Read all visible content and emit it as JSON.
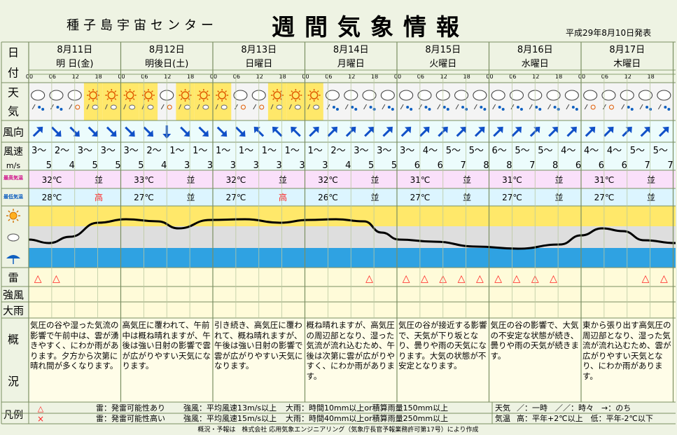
{
  "header": {
    "org": "種子島宇宙センター",
    "title": "週間気象情報",
    "issued": "平成29年8月10日発表"
  },
  "row_labels": {
    "date": "日付",
    "weather": "天気",
    "wind_dir": "風向",
    "wind_speed": "風速",
    "wind_unit": "m/s",
    "max_temp": "最高気温",
    "min_temp": "最低気温",
    "lightning": "雷",
    "strong_wind": "強風",
    "heavy_rain": "大雨",
    "overview": "概況",
    "legend": "凡例"
  },
  "hours": [
    "00",
    "06",
    "12",
    "18"
  ],
  "days": [
    {
      "date": "8月11日",
      "weekday": "明 日(金)",
      "max": "32℃",
      "max_eval": "並",
      "min": "28℃",
      "min_eval": "高",
      "weather": [
        "cloud-rain",
        "cloud-rain",
        "cloud-sun",
        "sun",
        "sun"
      ],
      "wind_dir": [
        [
          45,
          "NE"
        ],
        [
          135,
          "SE"
        ],
        [
          135,
          "SE"
        ],
        [
          135,
          "SE"
        ],
        [
          135,
          "SE"
        ]
      ],
      "wind_speed": [
        [
          "3",
          "5"
        ],
        [
          "2",
          "4"
        ],
        [
          "3",
          "5"
        ],
        [
          "3",
          "5"
        ]
      ],
      "lightning": [
        true,
        true,
        false,
        false,
        false
      ],
      "overview": "気圧の谷や湿った気流の影響で午前中は、雲が湧きやすく、にわか雨があります。夕方から次第に晴れ間が多くなります。"
    },
    {
      "date": "8月12日",
      "weekday": "明後日(土)",
      "max": "33℃",
      "max_eval": "並",
      "min": "27℃",
      "min_eval": "並",
      "weather": [
        "sun",
        "sun",
        "cloud-sun",
        "sun",
        "sun"
      ],
      "wind_dir": [
        [
          135,
          "SE"
        ],
        [
          135,
          "SE"
        ],
        [
          180,
          "S"
        ],
        [
          135,
          "SE"
        ],
        [
          135,
          "SE"
        ]
      ],
      "wind_speed": [
        [
          "3",
          "5"
        ],
        [
          "2",
          "4"
        ],
        [
          "1",
          "3"
        ],
        [
          "1",
          "3"
        ]
      ],
      "lightning": [
        false,
        false,
        false,
        false,
        false
      ],
      "overview": "高気圧に覆われて、午前中は概ね晴れますが、午後は強い日射の影響で雲が広がりやすい天気になります。"
    },
    {
      "date": "8月13日",
      "weekday": "日曜日",
      "max": "32℃",
      "max_eval": "並",
      "min": "27℃",
      "min_eval": "高",
      "weather": [
        "sun",
        "cloud-sun",
        "cloud-sun",
        "sun",
        "sun"
      ],
      "wind_dir": [
        [
          135,
          "SE"
        ],
        [
          135,
          "SE"
        ],
        [
          315,
          "NW"
        ],
        [
          315,
          "NW"
        ],
        [
          315,
          "NW"
        ]
      ],
      "wind_speed": [
        [
          "1",
          "3"
        ],
        [
          "1",
          "3"
        ],
        [
          "1",
          "3"
        ],
        [
          "1",
          "3"
        ]
      ],
      "lightning": [
        false,
        false,
        false,
        false,
        false
      ],
      "overview": "引き続き、高気圧に覆われて、概ね晴れますが、午後は強い日射の影響で雲が広がりやすい天気になります。"
    },
    {
      "date": "8月14日",
      "weekday": "月曜日",
      "max": "32℃",
      "max_eval": "並",
      "min": "26℃",
      "min_eval": "並",
      "weather": [
        "sun",
        "cloud-rain",
        "cloud-rain",
        "cloud-rain",
        "cloud-rain"
      ],
      "wind_dir": [
        [
          45,
          "NE"
        ],
        [
          45,
          "NE"
        ],
        [
          45,
          "NE"
        ],
        [
          45,
          "NE"
        ],
        [
          45,
          "NE"
        ]
      ],
      "wind_speed": [
        [
          "1",
          "3"
        ],
        [
          "2",
          "4"
        ],
        [
          "3",
          "5"
        ],
        [
          "3",
          "5"
        ]
      ],
      "lightning": [
        false,
        false,
        false,
        true,
        false
      ],
      "overview": "概ね晴れますが、高気圧の周辺部となり、湿った気流が流れ込むため、午後は次第に雲が広がりやすく、にわか雨があります。"
    },
    {
      "date": "8月15日",
      "weekday": "火曜日",
      "max": "31℃",
      "max_eval": "並",
      "min": "27℃",
      "min_eval": "並",
      "weather": [
        "cloud-rain",
        "cloud-rain",
        "cloud-rain",
        "cloud-rain",
        "cloud-rain"
      ],
      "wind_dir": [
        [
          45,
          "NE"
        ],
        [
          45,
          "NE"
        ],
        [
          45,
          "NE"
        ],
        [
          45,
          "NE"
        ],
        [
          45,
          "NE"
        ]
      ],
      "wind_speed": [
        [
          "3",
          "6"
        ],
        [
          "4",
          "6"
        ],
        [
          "5",
          "7"
        ],
        [
          "5",
          "8"
        ]
      ],
      "lightning": [
        true,
        true,
        true,
        true,
        true
      ],
      "overview": "気圧の谷が接近する影響で、天気が下り坂となり、曇りや雨の天気になります。大気の状態が不安定となります。"
    },
    {
      "date": "8月16日",
      "weekday": "水曜日",
      "max": "31℃",
      "max_eval": "並",
      "min": "27℃",
      "min_eval": "並",
      "weather": [
        "cloud-rain",
        "cloud-rain",
        "cloud-rain",
        "cloud-rain",
        "cloud-rain"
      ],
      "wind_dir": [
        [
          45,
          "NE"
        ],
        [
          45,
          "NE"
        ],
        [
          45,
          "NE"
        ],
        [
          45,
          "NE"
        ],
        [
          45,
          "NE"
        ]
      ],
      "wind_speed": [
        [
          "6",
          "8"
        ],
        [
          "5",
          "7"
        ],
        [
          "5",
          "8"
        ],
        [
          "4",
          "6"
        ]
      ],
      "lightning": [
        true,
        true,
        true,
        true,
        false
      ],
      "overview": "気圧の谷の影響で、大気の不安定な状態が続き、曇りや雨の天気が続きます。"
    },
    {
      "date": "8月17日",
      "weekday": "木曜日",
      "max": "31℃",
      "max_eval": "並",
      "min": "27℃",
      "min_eval": "並",
      "weather": [
        "cloud-sun",
        "cloud-sun",
        "cloud-rain",
        "cloud-rain",
        "cloud-rain"
      ],
      "wind_dir": [
        [
          45,
          "NE"
        ],
        [
          45,
          "NE"
        ],
        [
          45,
          "NE"
        ],
        [
          45,
          "NE"
        ],
        [
          45,
          "NE"
        ]
      ],
      "wind_speed": [
        [
          "4",
          "6"
        ],
        [
          "4",
          "6"
        ],
        [
          "5",
          "7"
        ],
        [
          "5",
          "7"
        ]
      ],
      "lightning": [
        false,
        false,
        false,
        true,
        true
      ],
      "overview": "東から張り出す高気圧の周辺部となり、湿った気流が流れ込むため、雲が広がりやすい天気となり、にわか雨があります。"
    }
  ],
  "legend": {
    "row1": {
      "lightning": "雷：発雷可能性あり",
      "wind": "強風：平均風速13m/s以上",
      "rain": "大雨：時間10mm以上or積算雨量150mm以上",
      "weather_key": "天気",
      "weather_desc": "／：一時　／／：時々　→：のち"
    },
    "row2": {
      "lightning": "雷：発雷可能性高い",
      "wind": "強風：平均風速15m/s以上",
      "rain": "大雨：時間40mm以上or積算雨量250mm以上",
      "temp_key": "気温",
      "temp_desc": "高：平年+2℃以上　低：平年-2℃以下"
    }
  },
  "footer": "概況・予報は　株式会社 応用気象エンジニアリング（気象庁長官予報業務許可第17号）により作成",
  "colors": {
    "sun_fill": "#ffe86a",
    "cloud_fill": "#dedede",
    "rain_fill": "#2fa2e2",
    "temp_fill": "#fae0fa",
    "temp_min_fill": "#dcf5ff",
    "wind_fill": "#ecfcfc",
    "lightning_mark": "#ff2020",
    "high_text": "#ff2020",
    "wind_arrow": "#1050c8"
  }
}
